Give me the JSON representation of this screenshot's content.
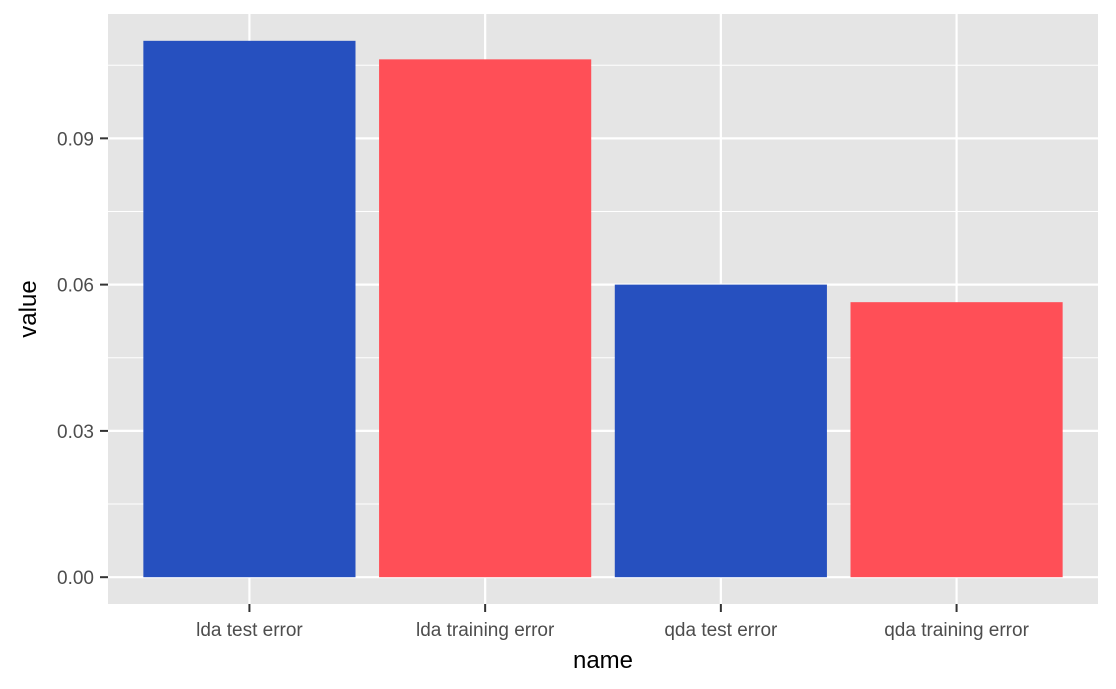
{
  "chart_data": {
    "type": "bar",
    "categories": [
      "lda test error",
      "lda training error",
      "qda test error",
      "qda training error"
    ],
    "values": [
      0.11,
      0.1062,
      0.06,
      0.0564
    ],
    "bar_colors": [
      "#2650BF",
      "#FF4F57",
      "#2650BF",
      "#FF4F57"
    ],
    "xlabel": "name",
    "ylabel": "value",
    "ylim": [
      -0.0055,
      0.1155
    ],
    "yticks": [
      0.0,
      0.03,
      0.06,
      0.09
    ],
    "ytick_labels": [
      "0.00",
      "0.03",
      "0.06",
      "0.09"
    ],
    "grid": true,
    "panel_background": "#E5E5E5",
    "gridline_color": "#FFFFFF"
  }
}
